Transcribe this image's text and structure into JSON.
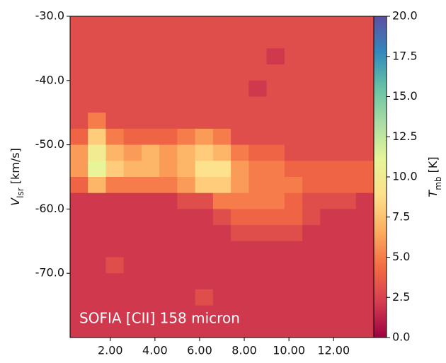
{
  "chart_data": {
    "type": "heatmap",
    "annotation": "SOFIA [CII] 158 micron",
    "y_label": "V",
    "y_label_sub": "lsr",
    "y_label_unit": " [km/s]",
    "colorbar_label": "T",
    "colorbar_label_sub": "mb",
    "colorbar_label_unit": " [K]",
    "xlim": [
      0.2,
      13.8
    ],
    "ylim": [
      -80,
      -30
    ],
    "clim": [
      0,
      20
    ],
    "xticks": [
      {
        "value": 2,
        "label": "2.00"
      },
      {
        "value": 4,
        "label": "4.00"
      },
      {
        "value": 6,
        "label": "6.00"
      },
      {
        "value": 8,
        "label": "8.00"
      },
      {
        "value": 10,
        "label": "10.00"
      },
      {
        "value": 12,
        "label": "12.00"
      }
    ],
    "yticks": [
      {
        "value": -30,
        "label": "-30.0"
      },
      {
        "value": -40,
        "label": "-40.0"
      },
      {
        "value": -50,
        "label": "-50.0"
      },
      {
        "value": -60,
        "label": "-60.0"
      },
      {
        "value": -70,
        "label": "-70.0"
      }
    ],
    "cticks": [
      {
        "value": 0,
        "label": "0.0"
      },
      {
        "value": 2.5,
        "label": "2.5"
      },
      {
        "value": 5,
        "label": "5.0"
      },
      {
        "value": 7.5,
        "label": "7.5"
      },
      {
        "value": 10,
        "label": "10.0"
      },
      {
        "value": 12.5,
        "label": "12.5"
      },
      {
        "value": 15,
        "label": "15.0"
      },
      {
        "value": 17.5,
        "label": "17.5"
      },
      {
        "value": 20,
        "label": "20.0"
      }
    ],
    "colormap": [
      "#9e0142",
      "#d53e4f",
      "#f46d43",
      "#fdae61",
      "#fee08b",
      "#e6f598",
      "#abdda4",
      "#66c2a5",
      "#3288bd",
      "#5e4fa2"
    ],
    "x_edges": [
      0.2,
      1.0,
      1.8,
      2.6,
      3.4,
      4.2,
      5.0,
      5.8,
      6.6,
      7.4,
      8.2,
      9.0,
      9.8,
      10.6,
      11.4,
      12.2,
      13.0,
      13.8
    ],
    "y_edges": [
      -30,
      -32.5,
      -35,
      -37.5,
      -40,
      -42.5,
      -45,
      -47.5,
      -50,
      -52.5,
      -55,
      -57.5,
      -60,
      -62.5,
      -65,
      -67.5,
      -70,
      -72.5,
      -75,
      -77.5,
      -80
    ],
    "values": [
      [
        3,
        3,
        3,
        3,
        3,
        3,
        3,
        3,
        3,
        3,
        3,
        3,
        3,
        3,
        3,
        3,
        3
      ],
      [
        3,
        3,
        3,
        3,
        3,
        3,
        3,
        3,
        3,
        3,
        3,
        3,
        3,
        3,
        3,
        3,
        3
      ],
      [
        3,
        3,
        3,
        3,
        3,
        3,
        3,
        3,
        3,
        3,
        3,
        2,
        3,
        3,
        3,
        3,
        3
      ],
      [
        3,
        3,
        3,
        3,
        3,
        3,
        3,
        3,
        3,
        3,
        3,
        3,
        3,
        3,
        3,
        3,
        3
      ],
      [
        3,
        3,
        3,
        3,
        3,
        3,
        3,
        3,
        3,
        3,
        2,
        3,
        3,
        3,
        3,
        3,
        3
      ],
      [
        3,
        3,
        3,
        3,
        3,
        3,
        3,
        3,
        3,
        3,
        3,
        3,
        3,
        3,
        3,
        3,
        3
      ],
      [
        3,
        5,
        3,
        3,
        3,
        3,
        3,
        3,
        3,
        3,
        3,
        3,
        3,
        3,
        3,
        3,
        3
      ],
      [
        4,
        8,
        5,
        4,
        4,
        4,
        5,
        6,
        5,
        3,
        3,
        3,
        3,
        3,
        3,
        3,
        3
      ],
      [
        6,
        10,
        7,
        6,
        7,
        6,
        7,
        8,
        7,
        5,
        4,
        4,
        3,
        3,
        3,
        3,
        3
      ],
      [
        6,
        11,
        8,
        7,
        7,
        6,
        7,
        9,
        9,
        6,
        5,
        5,
        4,
        4,
        4,
        4,
        4
      ],
      [
        4,
        7,
        5,
        5,
        5,
        5,
        6,
        8,
        8,
        6,
        5,
        5,
        5,
        4,
        4,
        4,
        4
      ],
      [
        2,
        2,
        2,
        2,
        2,
        2,
        3,
        3,
        5,
        5,
        5,
        5,
        4,
        3,
        3,
        3,
        2
      ],
      [
        2,
        2,
        2,
        2,
        2,
        2,
        2,
        2,
        3,
        4,
        4,
        4,
        4,
        3,
        2,
        2,
        2
      ],
      [
        2,
        2,
        2,
        2,
        2,
        2,
        2,
        2,
        2,
        3,
        3,
        3,
        3,
        2,
        2,
        2,
        2
      ],
      [
        2,
        2,
        2,
        2,
        2,
        2,
        2,
        2,
        2,
        2,
        2,
        2,
        2,
        2,
        2,
        2,
        2
      ],
      [
        2,
        2,
        3,
        2,
        2,
        2,
        2,
        2,
        2,
        2,
        2,
        2,
        2,
        2,
        2,
        2,
        2
      ],
      [
        2,
        2,
        2,
        2,
        2,
        2,
        2,
        2,
        2,
        2,
        2,
        2,
        2,
        2,
        2,
        2,
        2
      ],
      [
        2,
        2,
        2,
        2,
        2,
        2,
        2,
        3,
        2,
        2,
        2,
        2,
        2,
        2,
        2,
        2,
        2
      ],
      [
        2,
        2,
        2,
        2,
        2,
        2,
        2,
        2,
        2,
        2,
        2,
        2,
        2,
        2,
        2,
        2,
        2
      ],
      [
        2,
        2,
        2,
        2,
        2,
        2,
        2,
        2,
        2,
        2,
        2,
        2,
        2,
        2,
        2,
        2,
        2
      ]
    ]
  }
}
